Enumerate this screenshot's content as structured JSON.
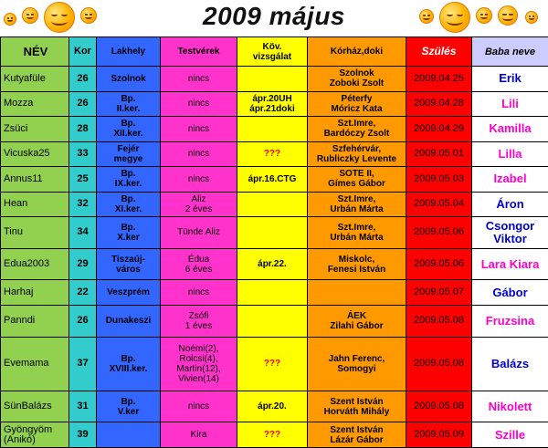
{
  "title": "2009 május",
  "colors": {
    "nev": "#92d050",
    "kor": "#33cccc",
    "lakhely": "#3366ff",
    "testverek": "#ff33cc",
    "kov": "#ffff00",
    "korhaz": "#ff9900",
    "szules": "#ff0000",
    "baba_header": "#ccccff",
    "boy_name": "#0000cc",
    "girl_name": "#ff00cc"
  },
  "columns": {
    "nev": "NÉV",
    "kor": "Kor",
    "lakhely": "Lakhely",
    "testverek": "Testvérek",
    "kov": "Köv.\nvizsgálat",
    "korhaz": "Kórház,doki",
    "szules": "Szülés",
    "baba": "Baba neve"
  },
  "rows": [
    {
      "nev": "Kutyafüle",
      "kor": "26",
      "lakhely": "Szolnok",
      "testverek": "nincs",
      "kov": "",
      "korhaz": "Szolnok\nZoboki Zsolt",
      "szules": "2009.04.25",
      "baba": "Erik",
      "baba_color": "blue",
      "size": "row"
    },
    {
      "nev": "Mozza",
      "kor": "26",
      "lakhely": "Bp.\nII.ker.",
      "testverek": "nincs",
      "kov": "ápr.20UH\nápr.21doki",
      "korhaz": "Péterfy\nMóricz Kata",
      "szules": "2009.04.28",
      "baba": "Lili",
      "baba_color": "pink",
      "size": "row"
    },
    {
      "nev": "Zsüci",
      "kor": "28",
      "lakhely": "Bp.\nXII.ker.",
      "testverek": "nincs",
      "kov": "",
      "korhaz": "Szt.Imre,\nBardóczy Zsolt",
      "szules": "2009.04.29",
      "baba": "Kamilla",
      "baba_color": "pink",
      "size": "row"
    },
    {
      "nev": "Vicuska25",
      "kor": "33",
      "lakhely": "Fejér\nmegye",
      "testverek": "nincs",
      "kov": "???",
      "korhaz": "Szfehérvár,\nRubliczky Levente",
      "szules": "2009.05.01",
      "baba": "Lilla",
      "baba_color": "pink",
      "size": "row"
    },
    {
      "nev": "Annus11",
      "kor": "25",
      "lakhely": "Bp.\nIX.ker.",
      "testverek": "nincs",
      "kov": "ápr.16.CTG",
      "korhaz": "SOTE II,\nGímes Gábor",
      "szules": "2009.05.03",
      "baba": "Izabel",
      "baba_color": "pink",
      "size": "row"
    },
    {
      "nev": "Hean",
      "kor": "32",
      "lakhely": "Bp.\nXI.ker.",
      "testverek": "Aliz\n2 éves",
      "kov": "",
      "korhaz": "Szt.Imre,\nUrbán Márta",
      "szules": "2009.05.04",
      "baba": "Áron",
      "baba_color": "blue",
      "size": "row"
    },
    {
      "nev": "Tinu",
      "kor": "34",
      "lakhely": "Bp.\nX.ker",
      "testverek": "Tünde Aliz",
      "kov": "",
      "korhaz": "Szt.Imre,\nUrbán Márta",
      "szules": "2009.05.06",
      "baba": "Csongor\nViktor",
      "baba_color": "blue",
      "size": "tall"
    },
    {
      "nev": "Edua2003",
      "kor": "29",
      "lakhely": "Tiszaúj-\nváros",
      "testverek": "Édua\n6 éves",
      "kov": "ápr.22.",
      "korhaz": "Miskolc,\nFenesi István",
      "szules": "2009.05.06",
      "baba": "Lara Kiara",
      "baba_color": "pink",
      "size": "tall"
    },
    {
      "nev": "Harhaj",
      "kor": "22",
      "lakhely": "Veszprém",
      "testverek": "nincs",
      "kov": "",
      "korhaz": "",
      "szules": "2009.05.07",
      "baba": "Gábor",
      "baba_color": "blue",
      "size": "row"
    },
    {
      "nev": "Panndi",
      "kor": "26",
      "lakhely": "Dunakeszi",
      "testverek": "Zsófi\n1 éves",
      "kov": "",
      "korhaz": "ÁEK\nZilahi Gábor",
      "szules": "2009.05.08",
      "baba": "Fruzsina",
      "baba_color": "pink",
      "size": "tall"
    },
    {
      "nev": "Evemama",
      "kor": "37",
      "lakhely": "Bp.\nXVIII.ker.",
      "testverek": "Noémi(2),\nRolcsi(4),\nMartin(12),\nVivien(14)",
      "kov": "???",
      "korhaz": "Jahn Ferenc,\nSomogyi",
      "szules": "2009.05.08",
      "baba": "Balázs",
      "baba_color": "blue",
      "size": "xtall"
    },
    {
      "nev": "SünBalázs",
      "kor": "31",
      "lakhely": "Bp.\nV.ker",
      "testverek": "nincs",
      "kov": "ápr.20.",
      "korhaz": "Szent István\nHorváth Mihály",
      "szules": "2009.05.08",
      "baba": "Nikolett",
      "baba_color": "pink",
      "size": "tall"
    },
    {
      "nev": "Gyöngyöm\n(Anikó)",
      "kor": "39",
      "lakhely": "",
      "testverek": "Kira",
      "kov": "???",
      "korhaz": "Szent István\nLázár Gábor",
      "szules": "2009.05.09",
      "baba": "Szille",
      "baba_color": "pink",
      "size": "row"
    }
  ]
}
